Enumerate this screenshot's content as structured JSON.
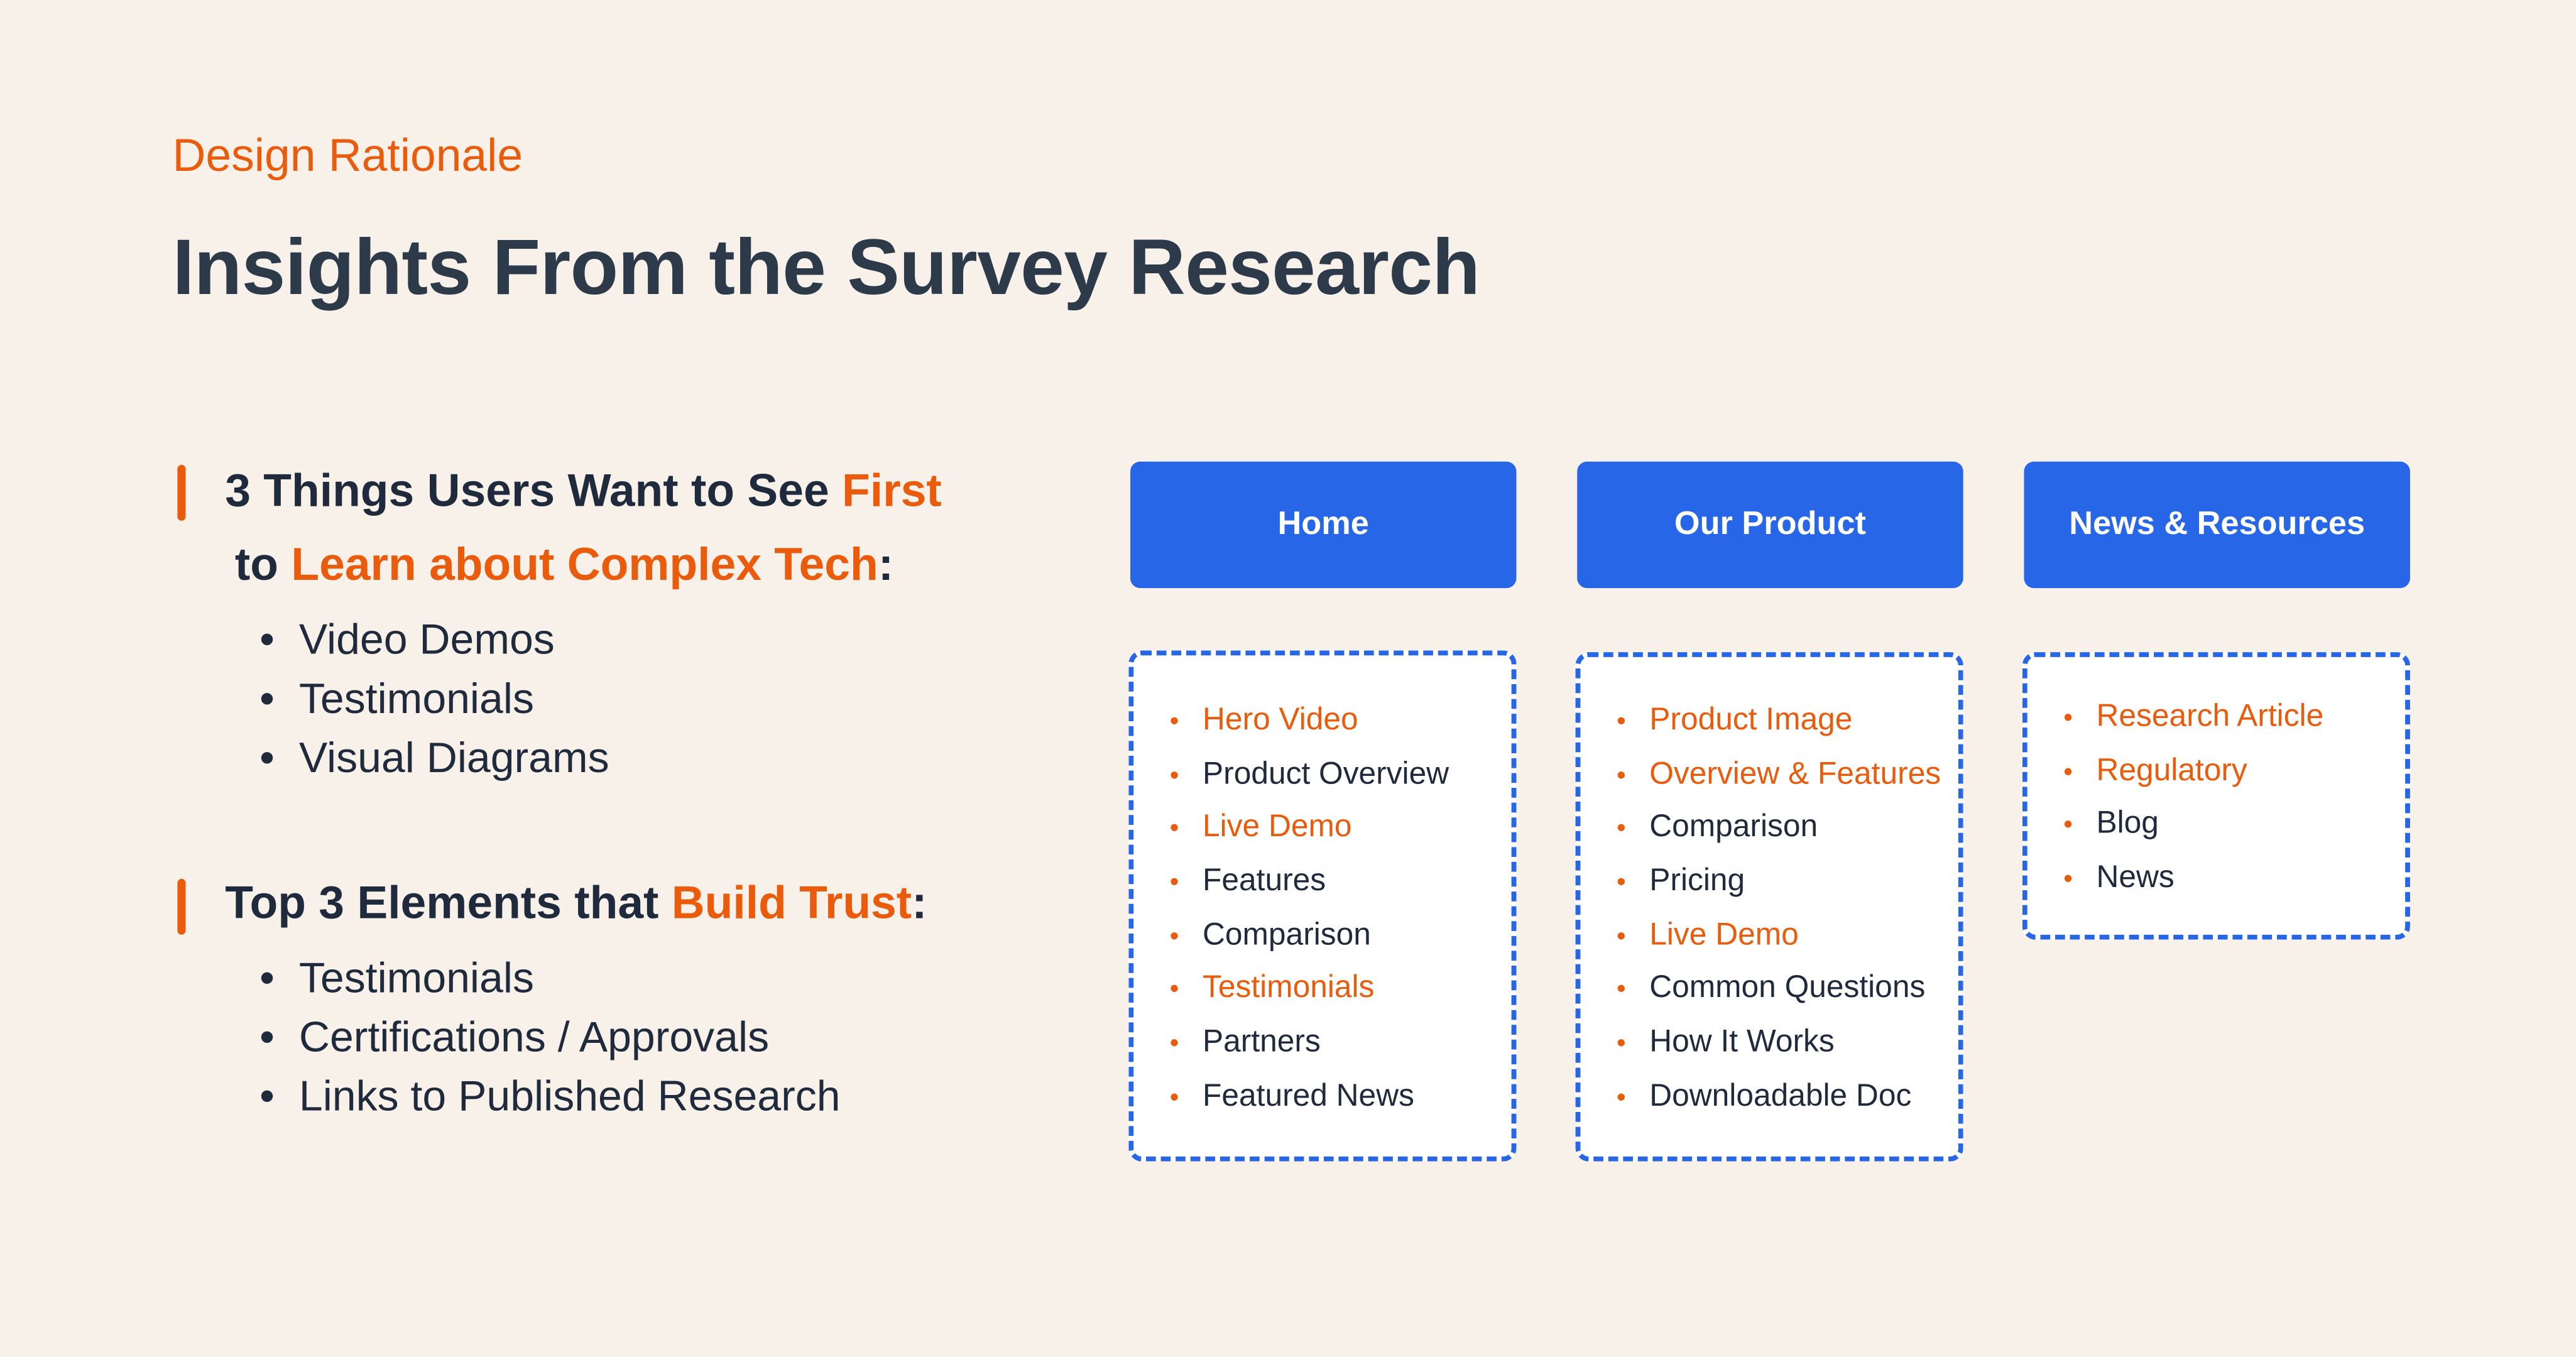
{
  "eyebrow": "Design Rationale",
  "title": "Insights From the Survey Research",
  "colors": {
    "accent": "#EA5B0C",
    "primary": "#2866E8",
    "text": "#1F2A3C",
    "background": "#F7F1EA"
  },
  "section1": {
    "line1_pre": "3 Things Users Want to See ",
    "line1_hl": "First",
    "line2_pre": "to ",
    "line2_hl": "Learn about Complex Tech",
    "line2_post": ":",
    "bullets": [
      "Video Demos",
      "Testimonials",
      "Visual Diagrams"
    ]
  },
  "section2": {
    "pre": "Top 3 Elements that ",
    "hl": "Build Trust",
    "post": ":",
    "bullets": [
      "Testimonials",
      "Certifications / Approvals",
      "Links to Published Research"
    ]
  },
  "bullet_char": "•",
  "columns": [
    {
      "label": "Home",
      "items": [
        {
          "text": "Hero Video",
          "highlight": true
        },
        {
          "text": "Product Overview",
          "highlight": false
        },
        {
          "text": "Live Demo",
          "highlight": true
        },
        {
          "text": "Features",
          "highlight": false
        },
        {
          "text": "Comparison",
          "highlight": false
        },
        {
          "text": "Testimonials",
          "highlight": true
        },
        {
          "text": "Partners",
          "highlight": false
        },
        {
          "text": "Featured News",
          "highlight": false
        }
      ]
    },
    {
      "label": "Our Product",
      "items": [
        {
          "text": "Product Image",
          "highlight": true
        },
        {
          "text": "Overview & Features",
          "highlight": true
        },
        {
          "text": "Comparison",
          "highlight": false
        },
        {
          "text": "Pricing",
          "highlight": false
        },
        {
          "text": "Live Demo",
          "highlight": true
        },
        {
          "text": "Common Questions",
          "highlight": false
        },
        {
          "text": "How It Works",
          "highlight": false
        },
        {
          "text": "Downloadable Doc",
          "highlight": false
        }
      ]
    },
    {
      "label": "News & Resources",
      "items": [
        {
          "text": "Research Article",
          "highlight": true
        },
        {
          "text": "Regulatory",
          "highlight": true
        },
        {
          "text": "Blog",
          "highlight": false
        },
        {
          "text": "News",
          "highlight": false
        }
      ]
    }
  ]
}
